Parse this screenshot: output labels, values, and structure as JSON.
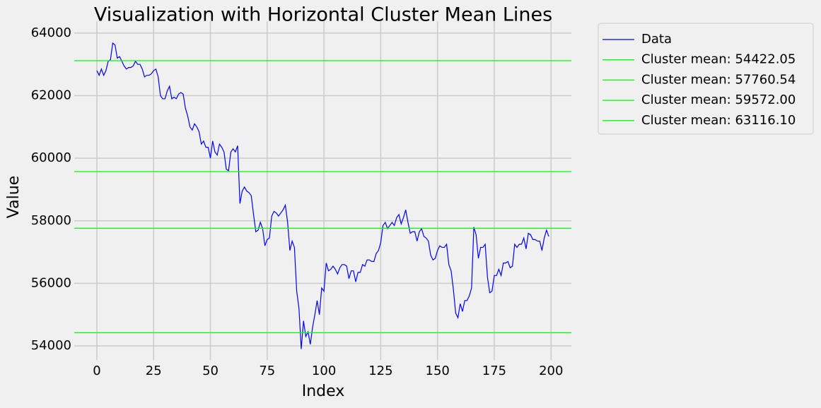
{
  "chart_data": {
    "type": "line",
    "title": "Visualization with Horizontal Cluster Mean Lines",
    "x_label": "Index",
    "y_label": "Value",
    "x": [
      0,
      1,
      2,
      3,
      4,
      5,
      6,
      7,
      8,
      9,
      10,
      11,
      12,
      13,
      14,
      15,
      16,
      17,
      18,
      19,
      20,
      21,
      22,
      23,
      24,
      25,
      26,
      27,
      28,
      29,
      30,
      31,
      32,
      33,
      34,
      35,
      36,
      37,
      38,
      39,
      40,
      41,
      42,
      43,
      44,
      45,
      46,
      47,
      48,
      49,
      50,
      51,
      52,
      53,
      54,
      55,
      56,
      57,
      58,
      59,
      60,
      61,
      62,
      63,
      64,
      65,
      66,
      67,
      68,
      69,
      70,
      71,
      72,
      73,
      74,
      75,
      76,
      77,
      78,
      79,
      80,
      81,
      82,
      83,
      84,
      85,
      86,
      87,
      88,
      89,
      90,
      91,
      92,
      93,
      94,
      95,
      96,
      97,
      98,
      99,
      100,
      101,
      102,
      103,
      104,
      105,
      106,
      107,
      108,
      109,
      110,
      111,
      112,
      113,
      114,
      115,
      116,
      117,
      118,
      119,
      120,
      121,
      122,
      123,
      124,
      125,
      126,
      127,
      128,
      129,
      130,
      131,
      132,
      133,
      134,
      135,
      136,
      137,
      138,
      139,
      140,
      141,
      142,
      143,
      144,
      145,
      146,
      147,
      148,
      149,
      150,
      151,
      152,
      153,
      154,
      155,
      156,
      157,
      158,
      159,
      160,
      161,
      162,
      163,
      164,
      165,
      166,
      167,
      168,
      169,
      170,
      171,
      172,
      173,
      174,
      175,
      176,
      177,
      178,
      179,
      180,
      181,
      182,
      183,
      184,
      185,
      186,
      187,
      188,
      189,
      190,
      191,
      192,
      193,
      194,
      195,
      196,
      197,
      198,
      199
    ],
    "series": [
      {
        "name": "Data",
        "color": "#0000ff",
        "values": [
          62800,
          62650,
          62850,
          62650,
          62800,
          63100,
          63150,
          63680,
          63620,
          63200,
          63250,
          63100,
          62950,
          62850,
          62900,
          62900,
          62950,
          63100,
          63000,
          63000,
          62850,
          62600,
          62650,
          62650,
          62700,
          62800,
          62850,
          62600,
          62000,
          61900,
          61900,
          62150,
          62300,
          61900,
          61950,
          61900,
          62050,
          62100,
          62050,
          61600,
          61350,
          61000,
          60900,
          61100,
          61000,
          60850,
          60450,
          60550,
          60350,
          60350,
          60000,
          60550,
          60200,
          60100,
          60450,
          60350,
          60200,
          59650,
          59600,
          60200,
          60300,
          60200,
          60400,
          58550,
          58950,
          59080,
          58950,
          58900,
          58800,
          58200,
          57650,
          57700,
          57950,
          57750,
          57200,
          57400,
          57450,
          58150,
          58300,
          58250,
          58150,
          58250,
          58350,
          58500,
          57950,
          57050,
          57350,
          57150,
          55750,
          55200,
          53900,
          54800,
          54300,
          54450,
          54050,
          54600,
          55000,
          55450,
          55000,
          55850,
          55750,
          56650,
          56400,
          56450,
          56550,
          56450,
          56300,
          56500,
          56600,
          56600,
          56550,
          56150,
          56400,
          56400,
          56050,
          56350,
          56350,
          56600,
          56550,
          56750,
          56750,
          56700,
          56700,
          56950,
          57050,
          57300,
          57850,
          57950,
          57750,
          57850,
          57950,
          57850,
          58100,
          58200,
          57900,
          58100,
          58350,
          57950,
          57600,
          57650,
          57650,
          57350,
          57650,
          57750,
          57500,
          57450,
          57350,
          56900,
          56750,
          56800,
          57050,
          57200,
          57150,
          57150,
          57250,
          56600,
          56400,
          55800,
          55050,
          54900,
          55350,
          55100,
          55450,
          55450,
          55600,
          55850,
          57800,
          57550,
          56800,
          57150,
          57150,
          57250,
          56200,
          55700,
          55750,
          56250,
          56250,
          56450,
          56250,
          56650,
          56650,
          56700,
          56500,
          56550,
          57250,
          57150,
          57250,
          57250,
          57450,
          57100,
          57600,
          57550,
          57400,
          57400,
          57350,
          57350,
          57050,
          57450,
          57700,
          57500
        ]
      }
    ],
    "hlines": [
      {
        "name": "Cluster mean: 54422.05",
        "value": 54422.05,
        "color": "#00ff00"
      },
      {
        "name": "Cluster mean: 57760.54",
        "value": 57760.54,
        "color": "#00ff00"
      },
      {
        "name": "Cluster mean: 59572.00",
        "value": 59572.0,
        "color": "#00ff00"
      },
      {
        "name": "Cluster mean: 63116.10",
        "value": 63116.1,
        "color": "#00ff00"
      }
    ],
    "xlim": [
      -9.95,
      208.95
    ],
    "ylim": [
      53550,
      64380
    ],
    "xticks": [
      0,
      25,
      50,
      75,
      100,
      125,
      150,
      175,
      200
    ],
    "yticks": [
      54000,
      56000,
      58000,
      60000,
      62000,
      64000
    ],
    "grid": true,
    "legend": "outside-right"
  }
}
